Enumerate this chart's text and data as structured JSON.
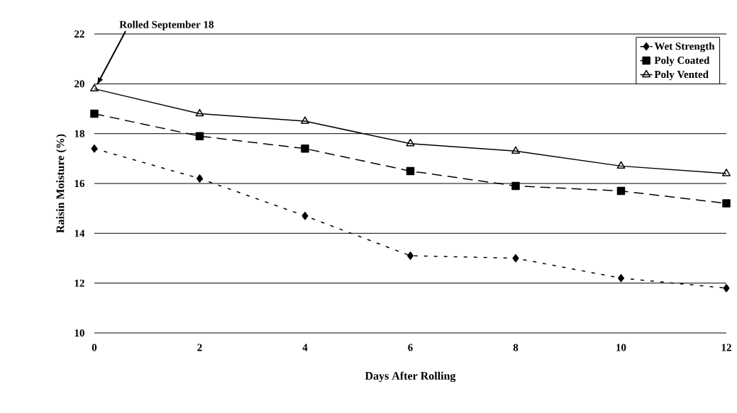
{
  "chart_data": {
    "type": "line",
    "xlabel": "Days After Rolling",
    "ylabel": "Raisin Moisture (%)",
    "x": [
      0,
      2,
      4,
      6,
      8,
      10,
      12
    ],
    "series": [
      {
        "name": "Wet Strength",
        "color": "#000000",
        "marker": "diamond",
        "line_style": "dotted",
        "values": [
          17.4,
          16.2,
          14.7,
          13.1,
          13.0,
          12.2,
          11.8
        ]
      },
      {
        "name": "Poly Coated",
        "color": "#000000",
        "marker": "square",
        "line_style": "dashed",
        "values": [
          18.8,
          17.9,
          17.4,
          16.5,
          15.9,
          15.7,
          15.2
        ]
      },
      {
        "name": "Poly Vented",
        "color": "#000000",
        "marker": "triangle",
        "line_style": "solid",
        "values": [
          19.8,
          18.8,
          18.5,
          17.6,
          17.3,
          16.7,
          16.4
        ]
      }
    ],
    "xlim": [
      0,
      12
    ],
    "xticks": [
      0,
      2,
      4,
      6,
      8,
      10,
      12
    ],
    "ylim": [
      10,
      22
    ],
    "yticks": [
      10,
      12,
      14,
      16,
      18,
      20,
      22
    ],
    "grid": "y",
    "legend": "top right",
    "annotations": [
      "Rolled September 18"
    ]
  }
}
